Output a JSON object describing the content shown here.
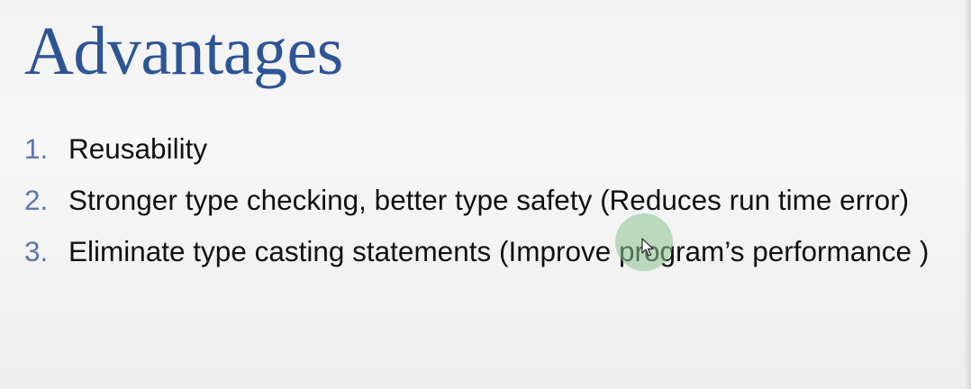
{
  "slide": {
    "title": "Advantages",
    "items": [
      {
        "number": "1.",
        "text": "Reusability"
      },
      {
        "number": "2.",
        "text": "Stronger type checking, better type safety (Reduces run time error)"
      },
      {
        "number": "3.",
        "text": "Eliminate type casting statements (Improve program’s performance )"
      }
    ]
  },
  "colors": {
    "title": "#2d5596",
    "numbers": "#5d76b1",
    "body_text": "#111111",
    "background": "#f4f4f4",
    "cursor_highlight": "#8cc38c"
  },
  "icons": {
    "cursor": "mouse-pointer-icon"
  }
}
